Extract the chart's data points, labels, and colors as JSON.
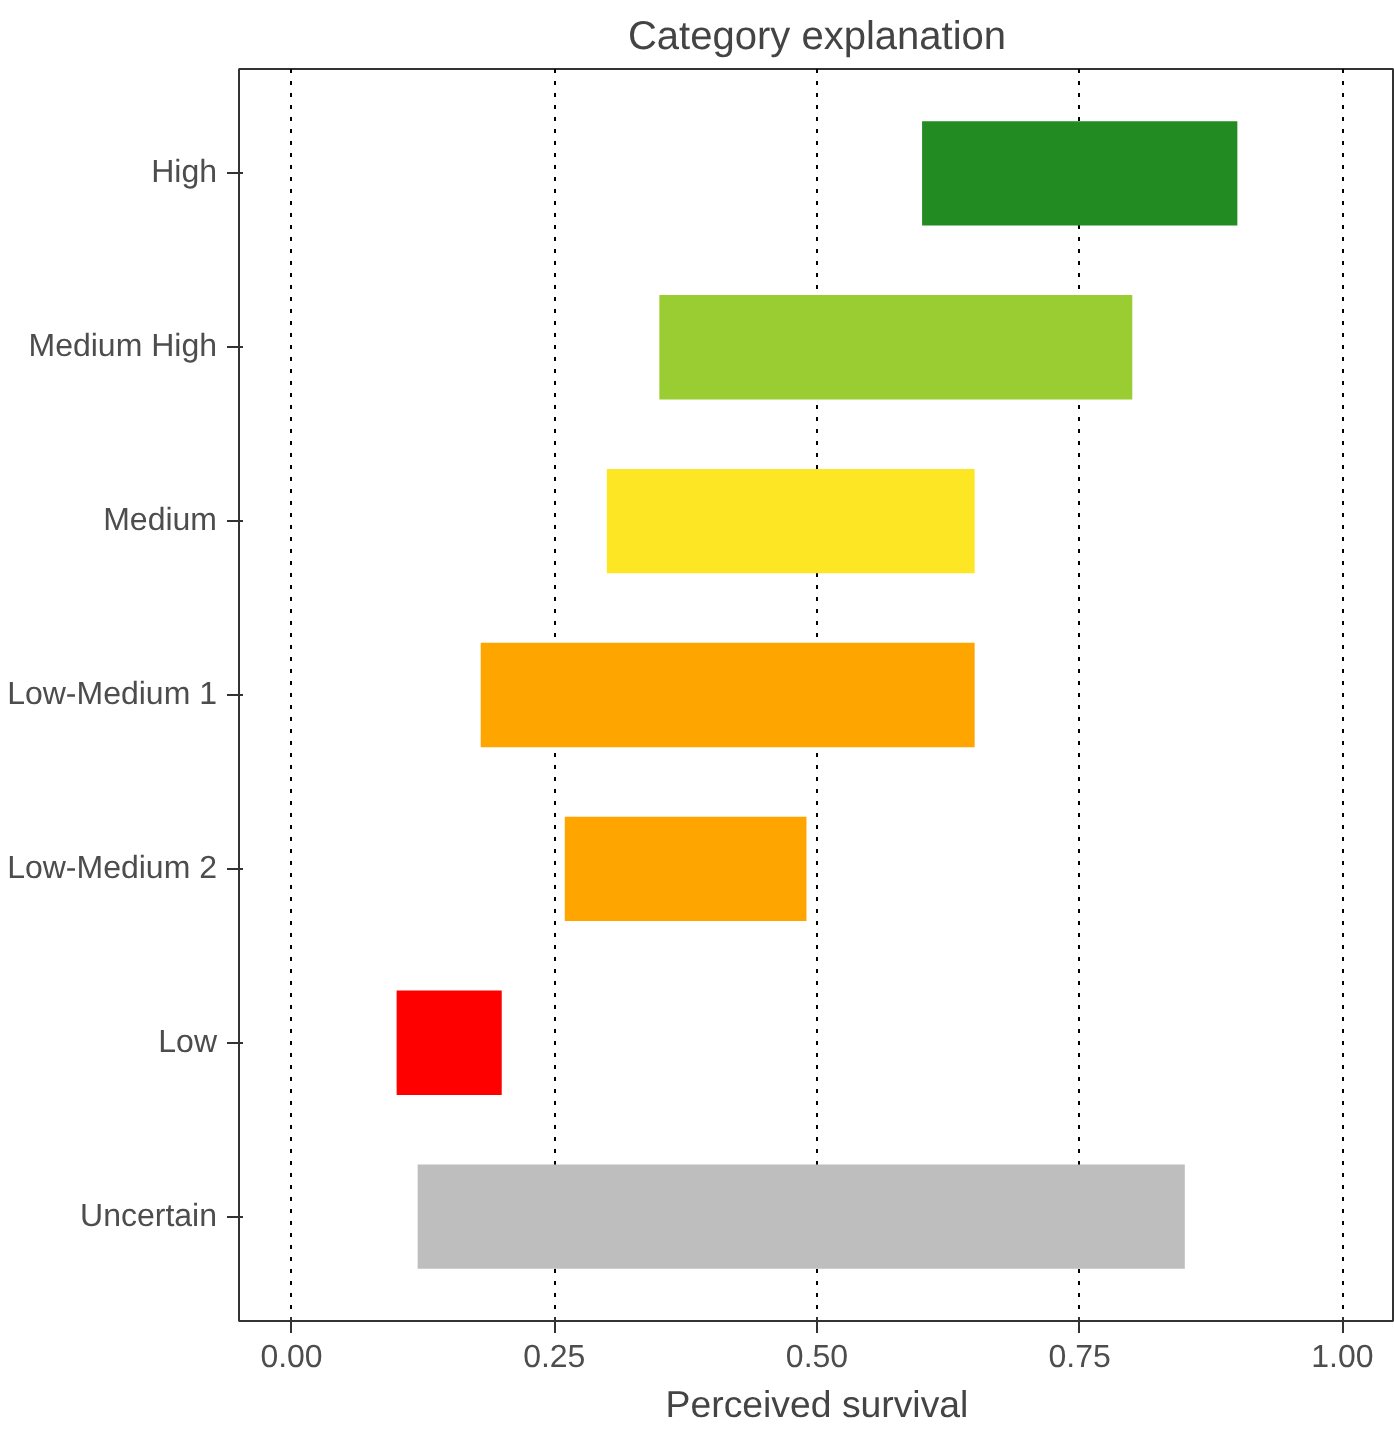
{
  "chart_data": {
    "type": "bar",
    "orientation": "horizontal",
    "title": "Category explanation",
    "xlabel": "Perceived survival",
    "categories": [
      "High",
      "Medium High",
      "Medium",
      "Low-Medium 1",
      "Low-Medium 2",
      "Low",
      "Uncertain"
    ],
    "base": [
      0.6,
      0.35,
      0.3,
      0.18,
      0.26,
      0.1,
      0.12
    ],
    "values": [
      0.3,
      0.45,
      0.35,
      0.47,
      0.23,
      0.1,
      0.73
    ],
    "colors": [
      "#228b22",
      "#9acd32",
      "#fde725",
      "#ffa500",
      "#ffa500",
      "#ff0000",
      "#bebebe"
    ],
    "xlim": [
      -0.05,
      1.05
    ],
    "xticks": [
      {
        "value": 0,
        "label": "0.00"
      },
      {
        "value": 0.25,
        "label": "0.25"
      },
      {
        "value": 0.5,
        "label": "0.50"
      },
      {
        "value": 0.75,
        "label": "0.75"
      },
      {
        "value": 1,
        "label": "1.00"
      }
    ],
    "grid": "x",
    "line_style": "dotted"
  }
}
